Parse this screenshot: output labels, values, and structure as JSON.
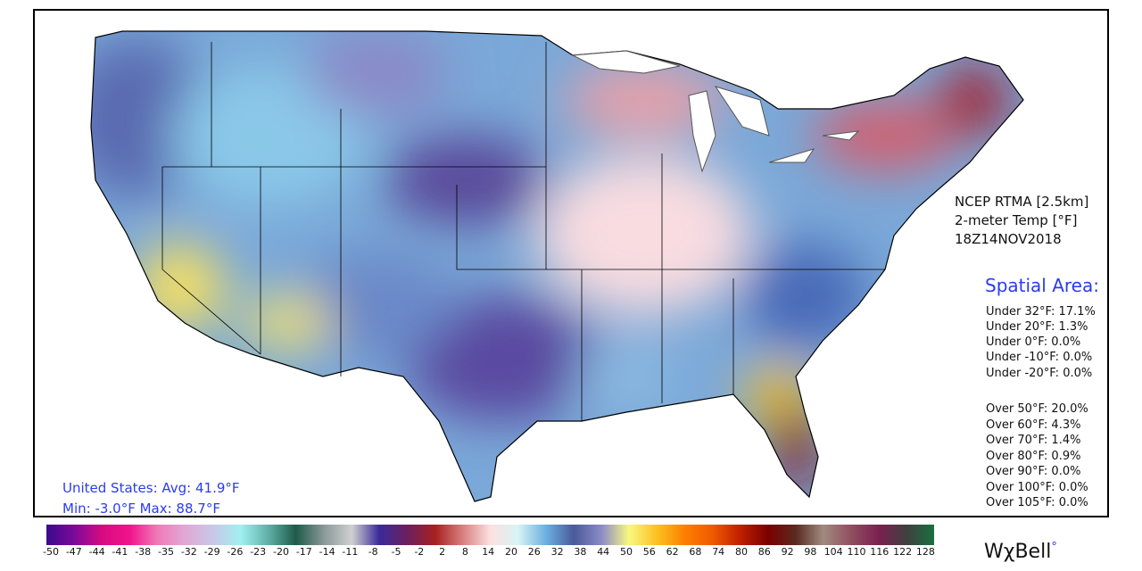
{
  "product": {
    "line1": "NCEP RTMA [2.5km]",
    "line2": "2-meter Temp [°F]",
    "line3": "18Z14NOV2018"
  },
  "spatial_area": {
    "title": "Spatial Area:",
    "under": [
      "Under 32°F: 17.1%",
      "Under 20°F: 1.3%",
      "Under 0°F: 0.0%",
      "Under -10°F: 0.0%",
      "Under -20°F: 0.0%"
    ],
    "over": [
      "Over 50°F: 20.0%",
      "Over 60°F: 4.3%",
      "Over 70°F: 1.4%",
      "Over 80°F: 0.9%",
      "Over 90°F: 0.0%",
      "Over 100°F: 0.0%",
      "Over 105°F: 0.0%"
    ]
  },
  "summary": {
    "avg": "United States: Avg:  41.9°F",
    "minmax": "Min:  -3.0°F Max:  88.7°F"
  },
  "colorbar": {
    "unit": "°F",
    "ticks": [
      "-50",
      "-47",
      "-44",
      "-41",
      "-38",
      "-35",
      "-32",
      "-29",
      "-26",
      "-23",
      "-20",
      "-17",
      "-14",
      "-11",
      "-8",
      "-5",
      "-2",
      "2",
      "8",
      "14",
      "20",
      "26",
      "32",
      "38",
      "44",
      "50",
      "56",
      "62",
      "68",
      "74",
      "80",
      "86",
      "92",
      "98",
      "104",
      "110",
      "116",
      "122",
      "128"
    ],
    "colors": [
      "#3b0a8c",
      "#7a0a9a",
      "#d80a80",
      "#f0148a",
      "#f07ab8",
      "#e0a8d4",
      "#c8c8e8",
      "#a0f0f0",
      "#60b0a8",
      "#1f5a4a",
      "#8a9a98",
      "#d0d0d0",
      "#3a2a9a",
      "#6a2060",
      "#a82020",
      "#d88080",
      "#fce0e0",
      "#d8f4f4",
      "#6ab0e0",
      "#4a5a9a",
      "#8a8ac8",
      "#f8f880",
      "#fcc020",
      "#fc8000",
      "#f05a00",
      "#c02000",
      "#7a0000",
      "#5a2a20",
      "#a08a80",
      "#905060",
      "#7a2050",
      "#404040",
      "#1a7040"
    ]
  },
  "logo": {
    "text": "WχBell",
    "mark": "°"
  }
}
